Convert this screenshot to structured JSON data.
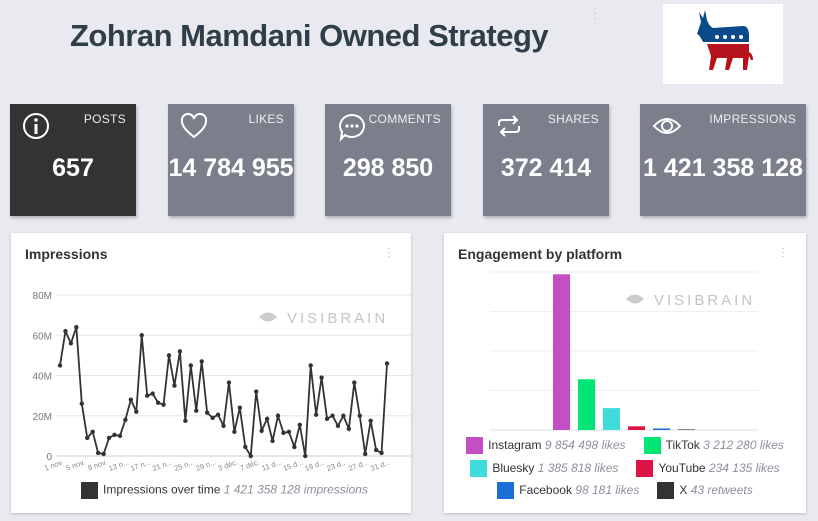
{
  "header": {
    "title": "Zohran Mamdani Owned Strategy"
  },
  "kpis": [
    {
      "label": "POSTS",
      "value": "657",
      "icon": "info-icon"
    },
    {
      "label": "LIKES",
      "value": "14 784 955",
      "icon": "heart-icon"
    },
    {
      "label": "COMMENTS",
      "value": "298 850",
      "icon": "comment-icon"
    },
    {
      "label": "SHARES",
      "value": "372 414",
      "icon": "share-icon"
    },
    {
      "label": "IMPRESSIONS",
      "value": "1 421 358 128",
      "icon": "eye-icon"
    }
  ],
  "watermark": "VISIBRAIN",
  "impressions": {
    "title": "Impressions",
    "legend_label": "Impressions over time",
    "legend_value": "1 421 358 128 impressions",
    "color": "#333333"
  },
  "engagement": {
    "title": "Engagement by platform",
    "legend": [
      {
        "name": "Instagram",
        "value": "9 854 498 likes",
        "color": "#c44fc2"
      },
      {
        "name": "TikTok",
        "value": "3 212 280 likes",
        "color": "#00e676"
      },
      {
        "name": "Bluesky",
        "value": "1 385 818 likes",
        "color": "#40dcdc"
      },
      {
        "name": "YouTube",
        "value": "234 135 likes",
        "color": "#dc1446"
      },
      {
        "name": "Facebook",
        "value": "98 181 likes",
        "color": "#1a6fd6"
      },
      {
        "name": "X",
        "value": "43 retweets",
        "color": "#333333"
      }
    ]
  },
  "chart_data": [
    {
      "type": "line",
      "title": "Impressions",
      "ylim": [
        0,
        80000000
      ],
      "yticks": [
        "0",
        "20M",
        "40M",
        "60M",
        "80M"
      ],
      "xticks": [
        "1 nov.",
        "5 nov.",
        "9 nov.",
        "13 n...",
        "17 n...",
        "21 n...",
        "25 n...",
        "29 n...",
        "3 déc.",
        "7 déc.",
        "11 d...",
        "15 d...",
        "19 d...",
        "23 d...",
        "27 d...",
        "31 d..."
      ],
      "series": [
        {
          "name": "Impressions over time",
          "values_millions": [
            45,
            62,
            56,
            64,
            26,
            9,
            12,
            1.5,
            1,
            9,
            10.5,
            10,
            18,
            28,
            22,
            60,
            30,
            31,
            26.5,
            25.5,
            50,
            35,
            52,
            17.5,
            45,
            22.5,
            47,
            21.5,
            19,
            20.5,
            15,
            36.5,
            12,
            24,
            4.5,
            0,
            32,
            12.5,
            18.5,
            7.5,
            20,
            11.5,
            12,
            4.5,
            15.5,
            0,
            45,
            20.5,
            39,
            18.5,
            20,
            15,
            20,
            13.5,
            36.5,
            20,
            1,
            17.5,
            3,
            1.5,
            46
          ]
        }
      ]
    },
    {
      "type": "bar",
      "title": "Engagement by platform",
      "ylim": [
        0,
        10000000
      ],
      "categories": [
        "Instagram",
        "TikTok",
        "Bluesky",
        "YouTube",
        "Facebook",
        "X"
      ],
      "values": [
        9854498,
        3212280,
        1385818,
        234135,
        98181,
        43
      ]
    }
  ]
}
